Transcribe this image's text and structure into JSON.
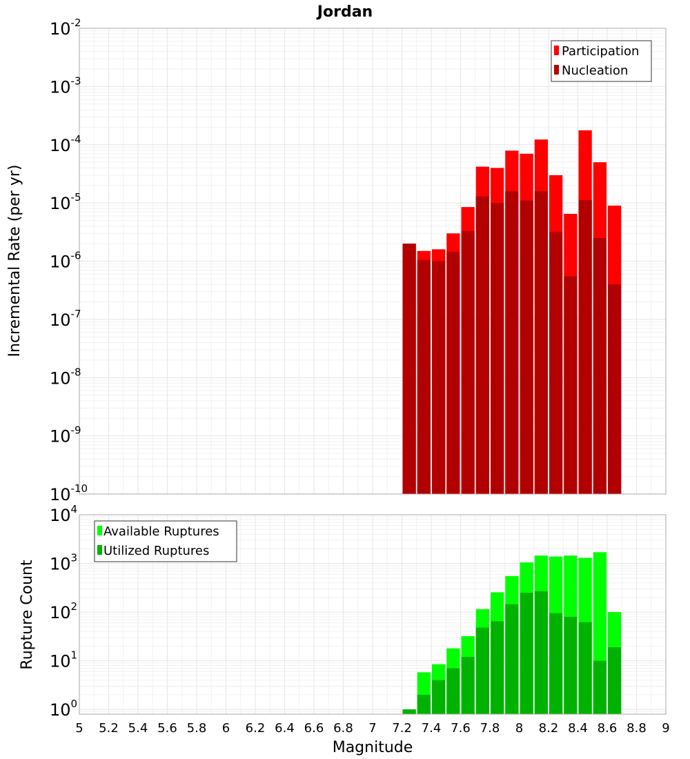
{
  "chart_data": [
    {
      "type": "bar",
      "title": "Jordan",
      "xlabel": "",
      "ylabel": "Incremental Rate (per yr)",
      "yscale": "log",
      "ylim": [
        1e-10,
        0.01
      ],
      "xlim": [
        5,
        9
      ],
      "grid": true,
      "legend_position": "top-right",
      "x": [
        7.25,
        7.35,
        7.45,
        7.55,
        7.65,
        7.75,
        7.85,
        7.95,
        8.05,
        8.15,
        8.25,
        8.35,
        8.45,
        8.55,
        8.65
      ],
      "series": [
        {
          "name": "Participation",
          "color": "#ff0000",
          "values": [
            2e-06,
            1.5e-06,
            1.6e-06,
            3e-06,
            8.5e-06,
            4.2e-05,
            4e-05,
            7.9e-05,
            7e-05,
            0.000123,
            3e-05,
            6.5e-06,
            0.000177,
            5e-05,
            9e-06
          ]
        },
        {
          "name": "Nucleation",
          "color": "#b20000",
          "values": [
            2e-06,
            1.05e-06,
            1e-06,
            1.45e-06,
            3.3e-06,
            1.3e-05,
            1e-05,
            1.6e-05,
            1.1e-05,
            1.6e-05,
            3.2e-06,
            5.5e-07,
            1.12e-05,
            2.5e-06,
            4e-07
          ]
        }
      ],
      "y_ticks": [
        {
          "base": "10",
          "exp": "-2"
        },
        {
          "base": "10",
          "exp": "-3"
        },
        {
          "base": "10",
          "exp": "-4"
        },
        {
          "base": "10",
          "exp": "-5"
        },
        {
          "base": "10",
          "exp": "-6"
        },
        {
          "base": "10",
          "exp": "-7"
        },
        {
          "base": "10",
          "exp": "-8"
        },
        {
          "base": "10",
          "exp": "-9"
        },
        {
          "base": "10",
          "exp": "-10"
        }
      ]
    },
    {
      "type": "bar",
      "title": "",
      "xlabel": "Magnitude",
      "ylabel": "Rupture Count",
      "yscale": "log",
      "ylim": [
        0.8,
        10000.0
      ],
      "xlim": [
        5,
        9
      ],
      "grid": true,
      "legend_position": "top-left",
      "x": [
        7.25,
        7.35,
        7.45,
        7.55,
        7.65,
        7.75,
        7.85,
        7.95,
        8.05,
        8.15,
        8.25,
        8.35,
        8.45,
        8.55,
        8.65
      ],
      "series": [
        {
          "name": "Available Ruptures",
          "color": "#00ff00",
          "values": [
            1,
            5.8,
            8.5,
            18,
            32,
            115,
            255,
            550,
            1050,
            1450,
            1380,
            1450,
            1300,
            1700,
            100
          ]
        },
        {
          "name": "Utilized Ruptures",
          "color": "#00b200",
          "values": [
            1,
            2,
            4,
            7,
            12,
            48,
            65,
            145,
            250,
            270,
            95,
            80,
            62,
            10,
            19
          ]
        }
      ],
      "y_ticks": [
        {
          "base": "10",
          "exp": "4"
        },
        {
          "base": "10",
          "exp": "3"
        },
        {
          "base": "10",
          "exp": "2"
        },
        {
          "base": "10",
          "exp": "1"
        },
        {
          "base": "10",
          "exp": "0"
        }
      ],
      "x_ticks": [
        "5",
        "5.2",
        "5.4",
        "5.6",
        "5.8",
        "6",
        "6.2",
        "6.4",
        "6.6",
        "6.8",
        "7",
        "7.2",
        "7.4",
        "7.6",
        "7.8",
        "8",
        "8.2",
        "8.4",
        "8.6",
        "8.8",
        "9"
      ]
    }
  ]
}
